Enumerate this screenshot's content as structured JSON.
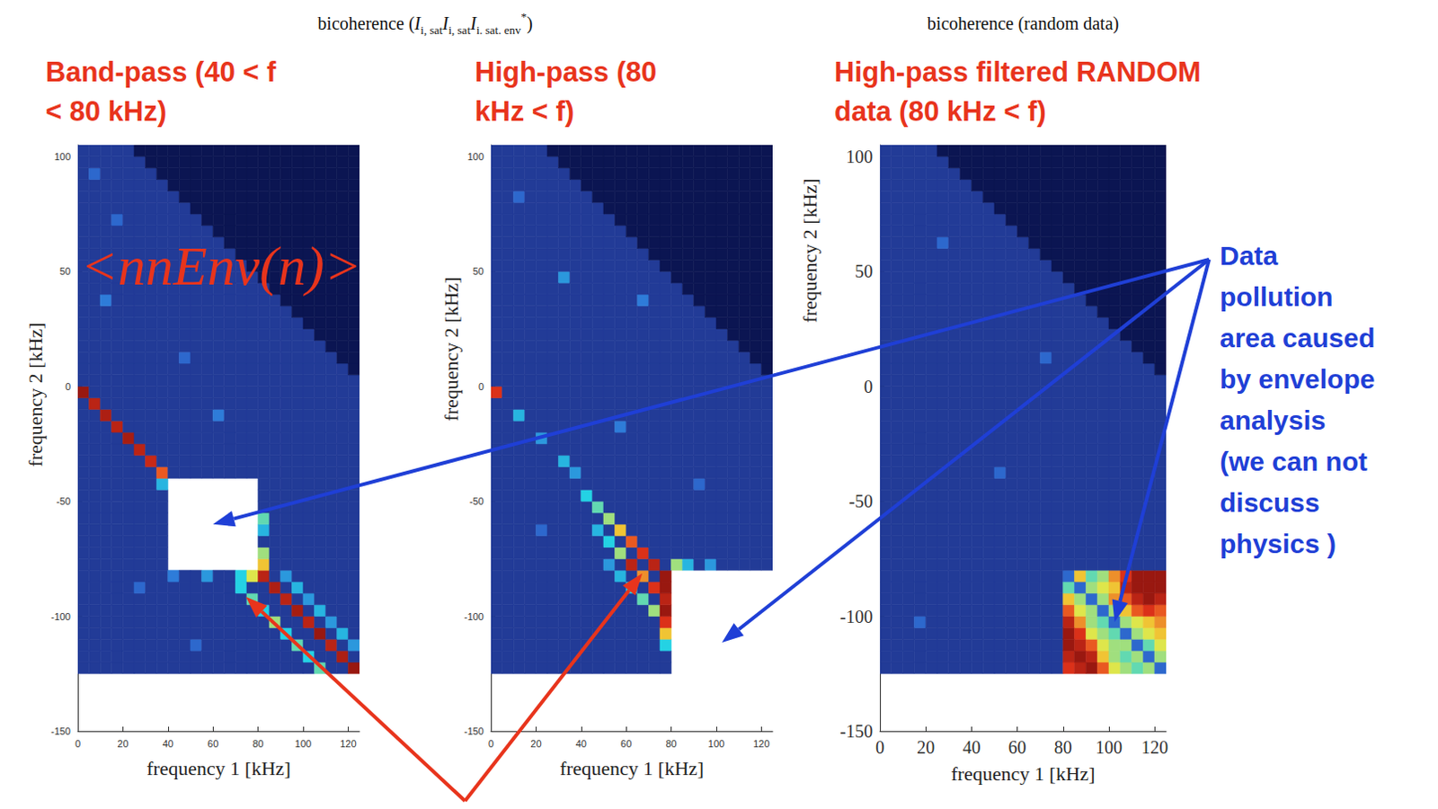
{
  "headers": [
    [
      {
        "text": "bicoherence ("
      },
      {
        "text": "I",
        "italic": true
      },
      {
        "text": "i, sat",
        "sub": true
      },
      {
        "text": "I",
        "italic": true
      },
      {
        "text": "i, sat",
        "sub": true
      },
      {
        "text": "I",
        "italic": true
      },
      {
        "text": "i. sat. env",
        "sub": true
      },
      {
        "text": "*",
        "sup": true
      },
      {
        "text": ")"
      }
    ],
    [
      {
        "text": "bicoherence (random data)"
      }
    ]
  ],
  "callout": {
    "text": [
      "Data",
      "pollution",
      "area caused",
      "by envelope",
      "analysis",
      "(we can not",
      "discuss",
      "physics )"
    ]
  },
  "chart_data": [
    {
      "type": "heatmap",
      "title": [
        "Band-pass (40 < f",
        "< 80 kHz)"
      ],
      "annotation": "<nnEnv(n)>",
      "x_label": "frequency 1 [kHz]",
      "y_label": "frequency 2 [kHz]",
      "xlim": [
        0,
        125
      ],
      "ylim": [
        -150,
        105
      ],
      "xticks": [
        0,
        20,
        40,
        60,
        80,
        100,
        120
      ],
      "yticks": [
        -150,
        -100,
        -50,
        0,
        50,
        100
      ],
      "value_range": [
        0,
        1
      ],
      "cell_size": 5,
      "cell_extent": {
        "f1": [
          0,
          125
        ],
        "f2": [
          -125,
          105
        ]
      },
      "background": 0.15,
      "zero_where_sum_above": 125,
      "blank": [
        [
          40,
          80,
          -80,
          -40
        ]
      ],
      "cells": [
        [
          2.5,
          -2.5,
          0.95
        ],
        [
          7.5,
          -7.5,
          0.9
        ],
        [
          12.5,
          -12.5,
          0.92
        ],
        [
          17.5,
          -17.5,
          0.9
        ],
        [
          22.5,
          -22.5,
          0.93
        ],
        [
          27.5,
          -27.5,
          0.9
        ],
        [
          32.5,
          -32.5,
          0.88
        ],
        [
          37.5,
          -37.5,
          0.8
        ],
        [
          37.5,
          -42.5,
          0.45
        ],
        [
          82.5,
          -57.5,
          0.55
        ],
        [
          82.5,
          -62.5,
          0.45
        ],
        [
          82.5,
          -72.5,
          0.6
        ],
        [
          82.5,
          -77.5,
          0.7
        ],
        [
          77.5,
          -82.5,
          0.65
        ],
        [
          72.5,
          -82.5,
          0.5
        ],
        [
          57.5,
          -82.5,
          0.4
        ],
        [
          42.5,
          -82.5,
          0.35
        ],
        [
          82.5,
          -82.5,
          0.9
        ],
        [
          87.5,
          -87.5,
          0.92
        ],
        [
          92.5,
          -92.5,
          0.9
        ],
        [
          97.5,
          -97.5,
          0.93
        ],
        [
          102.5,
          -102.5,
          0.9
        ],
        [
          107.5,
          -107.5,
          0.95
        ],
        [
          112.5,
          -112.5,
          0.9
        ],
        [
          117.5,
          -117.5,
          0.92
        ],
        [
          122.5,
          -122.5,
          0.95
        ],
        [
          72.5,
          -87.5,
          0.5
        ],
        [
          77.5,
          -92.5,
          0.55
        ],
        [
          82.5,
          -97.5,
          0.5
        ],
        [
          87.5,
          -102.5,
          0.6
        ],
        [
          92.5,
          -107.5,
          0.5
        ],
        [
          97.5,
          -112.5,
          0.55
        ],
        [
          102.5,
          -117.5,
          0.5
        ],
        [
          107.5,
          -122.5,
          0.55
        ],
        [
          92.5,
          -82.5,
          0.4
        ],
        [
          97.5,
          -87.5,
          0.45
        ],
        [
          102.5,
          -92.5,
          0.4
        ],
        [
          107.5,
          -97.5,
          0.45
        ],
        [
          112.5,
          -102.5,
          0.4
        ],
        [
          117.5,
          -107.5,
          0.45
        ],
        [
          122.5,
          -112.5,
          0.4
        ],
        [
          12.5,
          37.5,
          0.35
        ],
        [
          47.5,
          12.5,
          0.3
        ],
        [
          27.5,
          -87.5,
          0.3
        ],
        [
          62.5,
          -12.5,
          0.35
        ],
        [
          17.5,
          72.5,
          0.3
        ],
        [
          7.5,
          92.5,
          0.3
        ],
        [
          52.5,
          -112.5,
          0.3
        ]
      ]
    },
    {
      "type": "heatmap",
      "title": [
        "High-pass (80",
        "kHz < f)"
      ],
      "x_label": "frequency 1 [kHz]",
      "y_label": "frequency 2 [kHz]",
      "xlim": [
        0,
        125
      ],
      "ylim": [
        -150,
        105
      ],
      "xticks": [
        0,
        20,
        40,
        60,
        80,
        100,
        120
      ],
      "yticks": [
        -150,
        -100,
        -50,
        0,
        50,
        100
      ],
      "value_range": [
        0,
        1
      ],
      "cell_size": 5,
      "cell_extent": {
        "f1": [
          0,
          125
        ],
        "f2": [
          -125,
          105
        ]
      },
      "background": 0.15,
      "zero_where_sum_above": 125,
      "blank": [
        [
          80,
          125,
          -125,
          -80
        ]
      ],
      "cells": [
        [
          2.5,
          -2.5,
          0.85
        ],
        [
          12.5,
          -12.5,
          0.45
        ],
        [
          22.5,
          -22.5,
          0.4
        ],
        [
          32.5,
          -32.5,
          0.45
        ],
        [
          37.5,
          -37.5,
          0.4
        ],
        [
          42.5,
          -47.5,
          0.5
        ],
        [
          47.5,
          -52.5,
          0.55
        ],
        [
          52.5,
          -57.5,
          0.6
        ],
        [
          57.5,
          -62.5,
          0.7
        ],
        [
          62.5,
          -67.5,
          0.8
        ],
        [
          67.5,
          -72.5,
          0.85
        ],
        [
          72.5,
          -77.5,
          0.9
        ],
        [
          77.5,
          -82.5,
          0.95
        ],
        [
          47.5,
          -62.5,
          0.45
        ],
        [
          52.5,
          -67.5,
          0.5
        ],
        [
          57.5,
          -72.5,
          0.6
        ],
        [
          62.5,
          -77.5,
          0.9
        ],
        [
          67.5,
          -82.5,
          0.75
        ],
        [
          72.5,
          -87.5,
          0.85
        ],
        [
          52.5,
          -77.5,
          0.4
        ],
        [
          57.5,
          -82.5,
          0.45
        ],
        [
          62.5,
          -87.5,
          0.5
        ],
        [
          67.5,
          -92.5,
          0.55
        ],
        [
          72.5,
          -97.5,
          0.6
        ],
        [
          77.5,
          -87.5,
          0.95
        ],
        [
          77.5,
          -92.5,
          0.9
        ],
        [
          77.5,
          -97.5,
          0.95
        ],
        [
          77.5,
          -102.5,
          0.85
        ],
        [
          77.5,
          -107.5,
          0.7
        ],
        [
          77.5,
          -112.5,
          0.5
        ],
        [
          82.5,
          -77.5,
          0.6
        ],
        [
          87.5,
          -77.5,
          0.45
        ],
        [
          97.5,
          -77.5,
          0.4
        ],
        [
          32.5,
          47.5,
          0.4
        ],
        [
          57.5,
          -17.5,
          0.35
        ],
        [
          22.5,
          -62.5,
          0.3
        ],
        [
          67.5,
          37.5,
          0.35
        ],
        [
          12.5,
          82.5,
          0.3
        ],
        [
          92.5,
          -42.5,
          0.3
        ]
      ]
    },
    {
      "type": "heatmap",
      "title": [
        "High-pass filtered RANDOM",
        "data (80 kHz < f)"
      ],
      "x_label": "frequency 1 [kHz]",
      "y_label": "frequency 2 [kHz]",
      "xlim": [
        0,
        125
      ],
      "ylim": [
        -150,
        105
      ],
      "xticks": [
        0,
        20,
        40,
        60,
        80,
        100,
        120
      ],
      "yticks": [
        -150,
        -100,
        -50,
        0,
        50,
        100
      ],
      "value_range": [
        0,
        1
      ],
      "cell_size": 5,
      "cell_extent": {
        "f1": [
          0,
          125
        ],
        "f2": [
          -125,
          105
        ]
      },
      "background": 0.15,
      "zero_where_sum_above": 125,
      "pollution_area": [
        80,
        125,
        -125,
        -80
      ],
      "cells": [
        [
          82.5,
          -82.5,
          0.3
        ],
        [
          87.5,
          -82.5,
          0.7
        ],
        [
          92.5,
          -82.5,
          0.55
        ],
        [
          97.5,
          -82.5,
          0.6
        ],
        [
          102.5,
          -82.5,
          0.75
        ],
        [
          107.5,
          -82.5,
          0.85
        ],
        [
          112.5,
          -82.5,
          0.95
        ],
        [
          117.5,
          -82.5,
          0.95
        ],
        [
          122.5,
          -82.5,
          0.95
        ],
        [
          82.5,
          -87.5,
          0.55
        ],
        [
          87.5,
          -87.5,
          0.3
        ],
        [
          92.5,
          -87.5,
          0.6
        ],
        [
          97.5,
          -87.5,
          0.65
        ],
        [
          102.5,
          -87.5,
          0.7
        ],
        [
          107.5,
          -87.5,
          0.9
        ],
        [
          112.5,
          -87.5,
          0.95
        ],
        [
          117.5,
          -87.5,
          0.95
        ],
        [
          122.5,
          -87.5,
          0.95
        ],
        [
          82.5,
          -92.5,
          0.7
        ],
        [
          87.5,
          -92.5,
          0.6
        ],
        [
          92.5,
          -92.5,
          0.3
        ],
        [
          97.5,
          -92.5,
          0.6
        ],
        [
          102.5,
          -92.5,
          0.75
        ],
        [
          107.5,
          -92.5,
          0.8
        ],
        [
          112.5,
          -92.5,
          0.9
        ],
        [
          117.5,
          -92.5,
          0.95
        ],
        [
          122.5,
          -92.5,
          0.9
        ],
        [
          82.5,
          -97.5,
          0.8
        ],
        [
          87.5,
          -97.5,
          0.65
        ],
        [
          92.5,
          -97.5,
          0.6
        ],
        [
          97.5,
          -97.5,
          0.3
        ],
        [
          102.5,
          -97.5,
          0.6
        ],
        [
          107.5,
          -97.5,
          0.7
        ],
        [
          112.5,
          -97.5,
          0.8
        ],
        [
          117.5,
          -97.5,
          0.85
        ],
        [
          122.5,
          -97.5,
          0.8
        ],
        [
          82.5,
          -102.5,
          0.9
        ],
        [
          87.5,
          -102.5,
          0.75
        ],
        [
          92.5,
          -102.5,
          0.6
        ],
        [
          97.5,
          -102.5,
          0.55
        ],
        [
          102.5,
          -102.5,
          0.3
        ],
        [
          107.5,
          -102.5,
          0.6
        ],
        [
          112.5,
          -102.5,
          0.65
        ],
        [
          117.5,
          -102.5,
          0.7
        ],
        [
          122.5,
          -102.5,
          0.75
        ],
        [
          82.5,
          -107.5,
          0.95
        ],
        [
          87.5,
          -107.5,
          0.85
        ],
        [
          92.5,
          -107.5,
          0.65
        ],
        [
          97.5,
          -107.5,
          0.6
        ],
        [
          102.5,
          -107.5,
          0.55
        ],
        [
          107.5,
          -107.5,
          0.3
        ],
        [
          112.5,
          -107.5,
          0.6
        ],
        [
          117.5,
          -107.5,
          0.65
        ],
        [
          122.5,
          -107.5,
          0.7
        ],
        [
          82.5,
          -112.5,
          0.95
        ],
        [
          87.5,
          -112.5,
          0.9
        ],
        [
          92.5,
          -112.5,
          0.8
        ],
        [
          97.5,
          -112.5,
          0.65
        ],
        [
          102.5,
          -112.5,
          0.6
        ],
        [
          107.5,
          -112.5,
          0.6
        ],
        [
          112.5,
          -112.5,
          0.3
        ],
        [
          117.5,
          -112.5,
          0.55
        ],
        [
          122.5,
          -112.5,
          0.65
        ],
        [
          82.5,
          -117.5,
          0.9
        ],
        [
          87.5,
          -117.5,
          0.95
        ],
        [
          92.5,
          -117.5,
          0.9
        ],
        [
          97.5,
          -117.5,
          0.7
        ],
        [
          102.5,
          -117.5,
          0.6
        ],
        [
          107.5,
          -117.5,
          0.55
        ],
        [
          112.5,
          -117.5,
          0.6
        ],
        [
          117.5,
          -117.5,
          0.3
        ],
        [
          122.5,
          -117.5,
          0.6
        ],
        [
          82.5,
          -122.5,
          0.85
        ],
        [
          87.5,
          -122.5,
          0.9
        ],
        [
          92.5,
          -122.5,
          0.95
        ],
        [
          97.5,
          -122.5,
          0.8
        ],
        [
          102.5,
          -122.5,
          0.65
        ],
        [
          107.5,
          -122.5,
          0.6
        ],
        [
          112.5,
          -122.5,
          0.55
        ],
        [
          117.5,
          -122.5,
          0.6
        ],
        [
          122.5,
          -122.5,
          0.3
        ],
        [
          27.5,
          62.5,
          0.3
        ],
        [
          52.5,
          -37.5,
          0.3
        ],
        [
          17.5,
          -102.5,
          0.3
        ],
        [
          72.5,
          12.5,
          0.3
        ]
      ]
    }
  ]
}
